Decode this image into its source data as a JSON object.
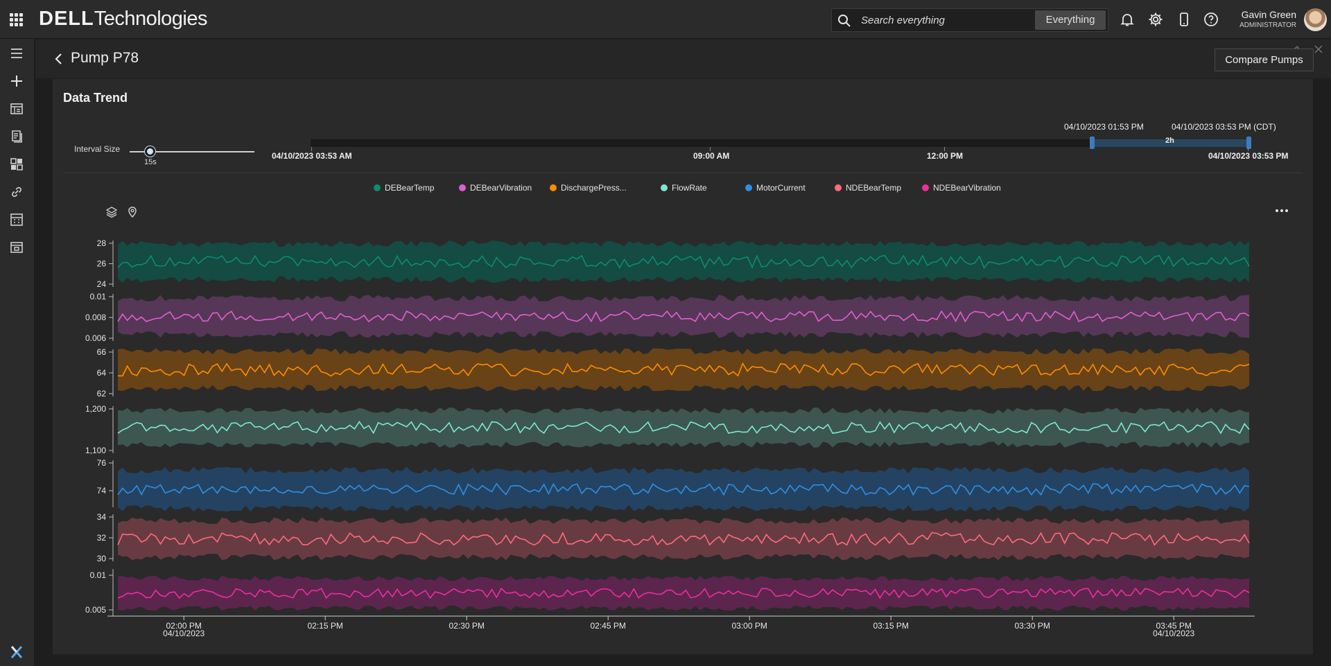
{
  "header": {
    "brand_bold": "DELL",
    "brand_rest": "Technologies",
    "search_placeholder": "Search everything",
    "search_scope": "Everything",
    "user_name": "Gavin Green",
    "user_role": "ADMINISTRATOR",
    "icons": [
      "apps-grid-icon",
      "search-icon",
      "bell-icon",
      "gear-icon",
      "mobile-icon",
      "help-icon"
    ]
  },
  "rail": {
    "icons": [
      "menu-icon",
      "plus-icon",
      "dashboard-icon",
      "report-icon",
      "widgets-icon",
      "link-icon",
      "calculator-icon",
      "table-icon",
      "x-logo-icon"
    ]
  },
  "page": {
    "title": "Pump P78",
    "compare_label": "Compare Pumps"
  },
  "card": {
    "title": "Data Trend",
    "interval_label": "Interval Size",
    "interval_value": "15s",
    "navigator": {
      "start_label": "04/10/2023 03:53 AM",
      "mid1_label": "09:00 AM",
      "mid2_label": "12:00 PM",
      "end_label": "04/10/2023 03:53 PM",
      "sel_start": "04/10/2023 01:53 PM",
      "sel_end": "04/10/2023 03:53 PM (CDT)",
      "sel_span": "2h"
    }
  },
  "chart_data": {
    "type": "line",
    "x_ticks": [
      "02:00 PM",
      "02:15 PM",
      "02:30 PM",
      "02:45 PM",
      "03:00 PM",
      "03:15 PM",
      "03:30 PM",
      "03:45 PM"
    ],
    "x_tick_dates": [
      "04/10/2023",
      "",
      "",
      "",
      "",
      "",
      "",
      "04/10/2023"
    ],
    "x_range": [
      "04/10/2023 01:53 PM",
      "04/10/2023 03:53 PM"
    ],
    "series": [
      {
        "name": "DEBearTemp",
        "color": "#0f8a72",
        "band": "#134d44",
        "ylim": [
          24,
          28
        ],
        "ticks": [
          "28",
          "26",
          "24"
        ],
        "mean": 26.2,
        "band_halfwidth": 1.8,
        "noise": 0.6
      },
      {
        "name": "DEBearVibration",
        "color": "#e15fd0",
        "band": "#58385a",
        "ylim": [
          0.006,
          0.01
        ],
        "ticks": [
          "0.01",
          "0.008",
          "0.006"
        ],
        "mean": 0.0081,
        "band_halfwidth": 0.0018,
        "noise": 0.0005
      },
      {
        "name": "DischargePress...",
        "color": "#ff8c00",
        "band": "#6b4416",
        "ylim": [
          62,
          66
        ],
        "ticks": [
          "66",
          "64",
          "62"
        ],
        "mean": 64.3,
        "band_halfwidth": 1.8,
        "noise": 0.6
      },
      {
        "name": "FlowRate",
        "color": "#7ee8cf",
        "band": "#3e5952",
        "ylim": [
          1100,
          1200
        ],
        "ticks": [
          "1,200",
          "1,100"
        ],
        "mean": 1155,
        "band_halfwidth": 42,
        "noise": 14
      },
      {
        "name": "MotorCurrent",
        "color": "#2f8fe4",
        "band": "#244565",
        "ylim": [
          73,
          76
        ],
        "ticks": [
          "76",
          "74"
        ],
        "mean": 74.1,
        "band_halfwidth": 1.4,
        "noise": 0.4
      },
      {
        "name": "NDEBearTemp",
        "color": "#ff6b7d",
        "band": "#6b3c44",
        "ylim": [
          30,
          34
        ],
        "ticks": [
          "34",
          "32",
          "30"
        ],
        "mean": 31.9,
        "band_halfwidth": 1.8,
        "noise": 0.6
      },
      {
        "name": "NDEBearVibration",
        "color": "#ee2e9c",
        "band": "#5e2550",
        "ylim": [
          0.0045,
          0.0105
        ],
        "ticks": [
          "0.01",
          "0.005"
        ],
        "mean": 0.0074,
        "band_halfwidth": 0.0022,
        "noise": 0.0007
      }
    ]
  }
}
